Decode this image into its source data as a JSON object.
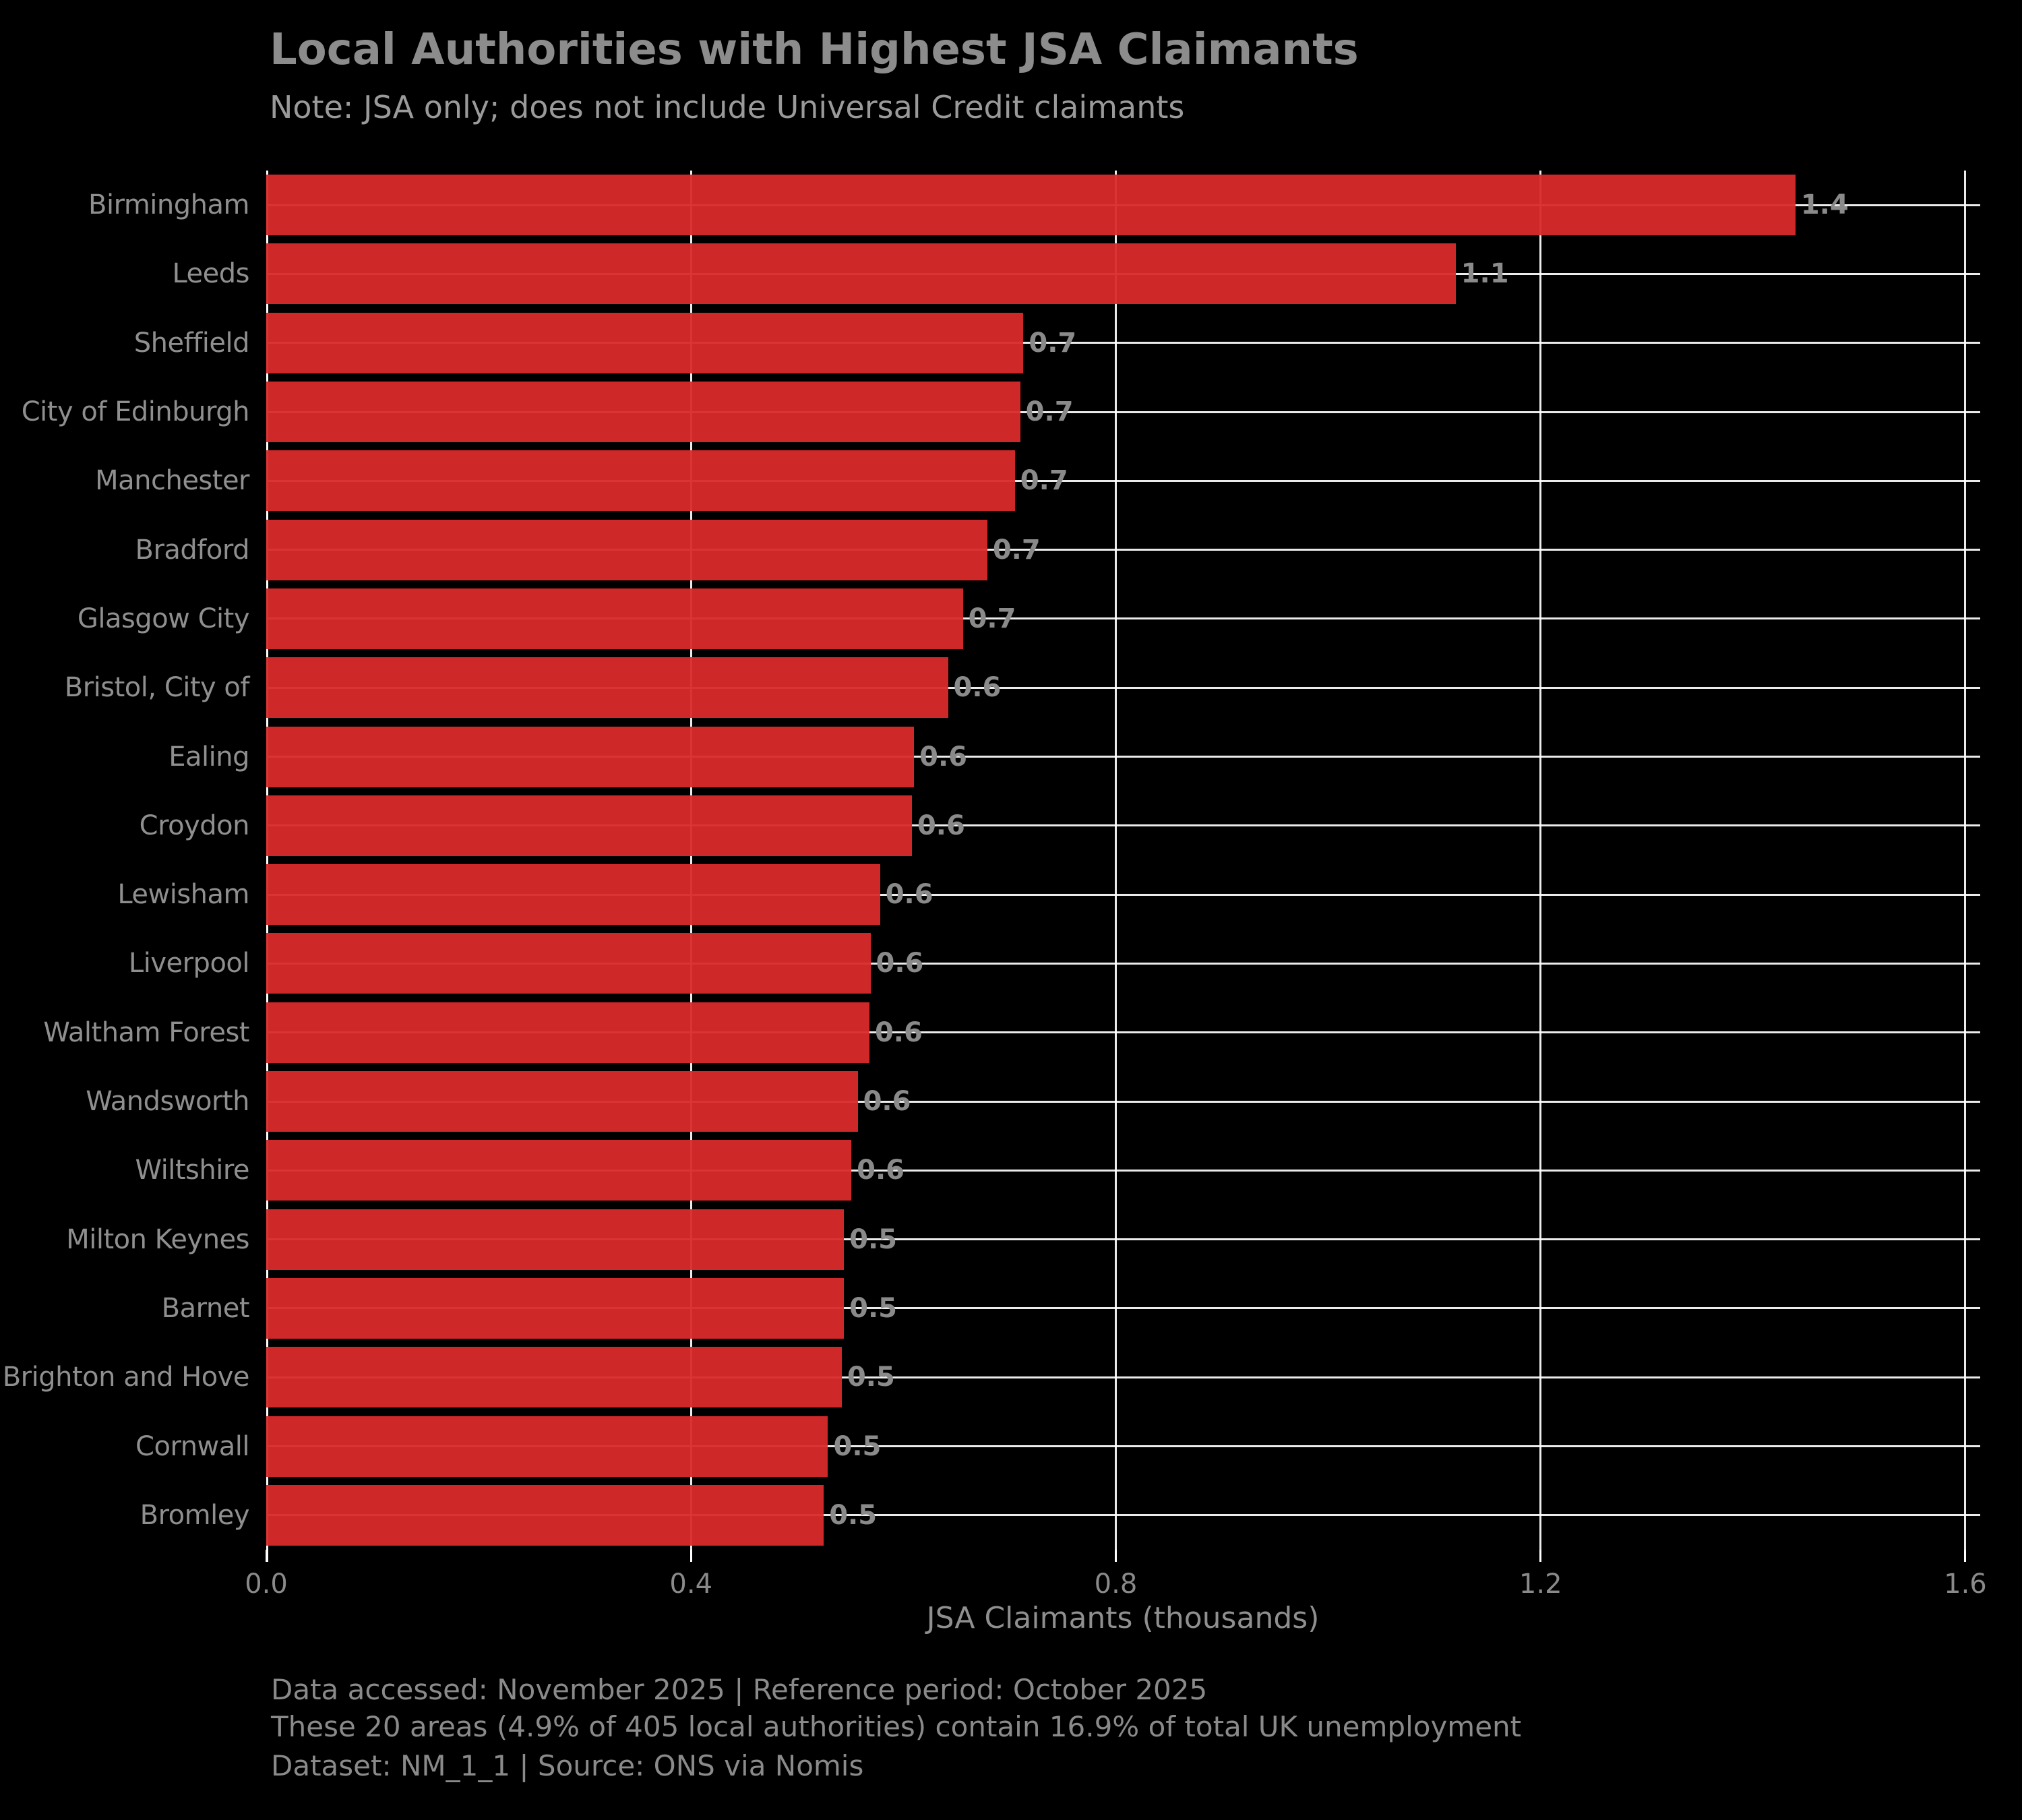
{
  "title": "Local Authorities with Highest JSA Claimants",
  "subtitle": "Note: JSA only; does not include Universal Credit claimants",
  "chart_data": {
    "type": "bar",
    "orientation": "horizontal",
    "title": "Local Authorities with Highest JSA Claimants",
    "subtitle": "Note: JSA only; does not include Universal Credit claimants",
    "xlabel": "JSA Claimants (thousands)",
    "ylabel": "",
    "categories": [
      "Birmingham",
      "Leeds",
      "Sheffield",
      "City of Edinburgh",
      "Manchester",
      "Bradford",
      "Glasgow City",
      "Bristol, City of",
      "Ealing",
      "Croydon",
      "Lewisham",
      "Liverpool",
      "Waltham Forest",
      "Wandsworth",
      "Wiltshire",
      "Milton Keynes",
      "Barnet",
      "Brighton and Hove",
      "Cornwall",
      "Bromley"
    ],
    "values": [
      1.44,
      1.12,
      0.713,
      0.71,
      0.705,
      0.679,
      0.656,
      0.642,
      0.61,
      0.608,
      0.578,
      0.569,
      0.568,
      0.557,
      0.551,
      0.544,
      0.544,
      0.542,
      0.529,
      0.525
    ],
    "value_labels": [
      "1.4",
      "1.1",
      "0.7",
      "0.7",
      "0.7",
      "0.7",
      "0.7",
      "0.6",
      "0.6",
      "0.6",
      "0.6",
      "0.6",
      "0.6",
      "0.6",
      "0.6",
      "0.5",
      "0.5",
      "0.5",
      "0.5",
      "0.5"
    ],
    "xlim": [
      0,
      1.614
    ],
    "x_ticks": [
      0,
      0.4,
      0.8,
      1.2,
      1.6
    ],
    "x_tick_labels": [
      "0.0",
      "0.4",
      "0.8",
      "1.2",
      "1.6"
    ],
    "grid": true,
    "legend": false,
    "bar_color": "#d62728",
    "grid_color": "#ffffff",
    "background_color": "#000000",
    "text_color": "#8c8c8c"
  },
  "footer": {
    "line1": "Data accessed: November 2025 | Reference period: October 2025",
    "line2": "These 20 areas (4.9% of 405 local authorities) contain 16.9% of total UK unemployment",
    "line3": "Dataset: NM_1_1 | Source: ONS via Nomis"
  }
}
